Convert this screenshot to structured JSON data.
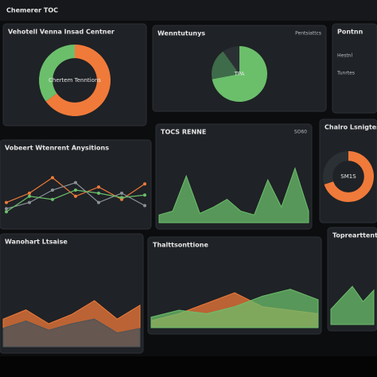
{
  "header": {
    "title": "Chemerer TOC"
  },
  "panels": [
    {
      "title": "Vehotell Venna Insad Centner",
      "chart": {
        "type": "donut",
        "center_label": "Chertem Tenntions",
        "values": [
          65,
          35
        ],
        "colors": [
          "#f07a3a",
          "#6bbf6b"
        ]
      }
    },
    {
      "title": "Wenntutunys",
      "subtitle": "Pentsiattcs",
      "chart": {
        "type": "pie",
        "center_label": "TPA",
        "values": [
          72,
          18,
          10
        ],
        "colors": [
          "#6bbf6b",
          "#3e6b4a",
          "#2b3034"
        ]
      }
    },
    {
      "title": "Pontnn",
      "chart": {
        "type": "text",
        "labels": [
          "Hestnl",
          "Tunrtes"
        ]
      }
    },
    {
      "title": "Vobeert Wtenrent Anysitions",
      "chart": {
        "type": "line",
        "ylim": [
          0,
          100
        ],
        "series": [
          {
            "color": "#f07a3a",
            "values": [
              30,
              45,
              70,
              40,
              55,
              35,
              60
            ]
          },
          {
            "color": "#8a9399",
            "values": [
              20,
              30,
              50,
              62,
              30,
              45,
              25
            ]
          },
          {
            "color": "#6bbf6b",
            "values": [
              15,
              40,
              35,
              50,
              45,
              38,
              42
            ]
          }
        ]
      }
    },
    {
      "title": "TOCS RENNE",
      "subtitle": "SO60",
      "chart": {
        "type": "area",
        "ylim": [
          0,
          100
        ],
        "series": [
          {
            "color": "#6bbf6b",
            "values": [
              10,
              15,
              60,
              12,
              20,
              30,
              15,
              10,
              55,
              20,
              70,
              15
            ]
          }
        ]
      }
    },
    {
      "title": "Chalro Lsnigtes",
      "chart": {
        "type": "donut",
        "center_label": "SM1S",
        "values": [
          70,
          30
        ],
        "colors": [
          "#f07a3a",
          "#2b3034"
        ]
      }
    },
    {
      "title": "Wanohart Ltsaise",
      "chart": {
        "type": "area",
        "ylim": [
          0,
          100
        ],
        "series": [
          {
            "color": "#f07a3a",
            "values": [
              30,
              40,
              25,
              35,
              50,
              30,
              45
            ]
          },
          {
            "color": "#4a5359",
            "values": [
              20,
              28,
              18,
              25,
              30,
              15,
              20
            ]
          }
        ]
      }
    },
    {
      "title": "Thalttsonttione",
      "chart": {
        "type": "area",
        "ylim": [
          0,
          100
        ],
        "series": [
          {
            "color": "#f07a3a",
            "values": [
              10,
              20,
              35,
              50,
              30,
              25,
              20
            ]
          },
          {
            "color": "#6bbf6b",
            "values": [
              15,
              25,
              20,
              30,
              45,
              55,
              40
            ]
          }
        ]
      }
    },
    {
      "title": "Toprearttentiono",
      "chart": {
        "type": "area",
        "ylim": [
          0,
          100
        ],
        "series": [
          {
            "color": "#6bbf6b",
            "values": [
              20,
              35,
              50,
              30,
              45
            ]
          }
        ]
      }
    }
  ]
}
